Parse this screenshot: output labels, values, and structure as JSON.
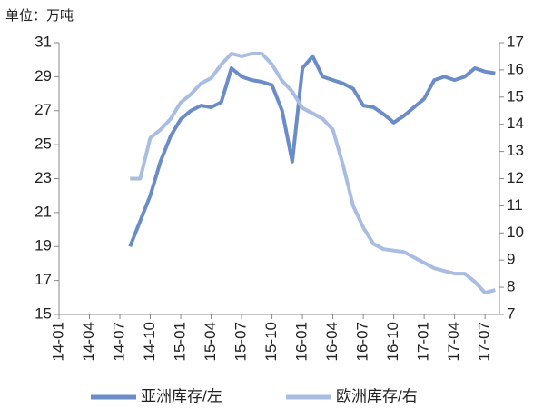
{
  "chart_data": {
    "type": "line",
    "unit_label": "单位：万吨",
    "categories": [
      "14-01",
      null,
      null,
      "14-04",
      null,
      null,
      "14-07",
      null,
      null,
      "14-10",
      null,
      null,
      "15-01",
      null,
      null,
      "15-04",
      null,
      null,
      "15-07",
      null,
      null,
      "15-10",
      null,
      null,
      "16-01",
      null,
      null,
      "16-04",
      null,
      null,
      "16-07",
      null,
      null,
      "16-10",
      null,
      null,
      "17-01",
      null,
      null,
      "17-04",
      null,
      null,
      "17-07",
      null,
      null
    ],
    "series": [
      {
        "name": "亚洲库存/左",
        "color": "#6b8cc7",
        "axis": "y",
        "values": [
          null,
          null,
          null,
          null,
          null,
          null,
          null,
          19,
          20.5,
          22,
          24,
          25.5,
          26.5,
          27,
          27.3,
          27.2,
          27.5,
          29.5,
          29,
          28.8,
          28.7,
          28.5,
          27,
          24,
          29.5,
          30.2,
          29,
          28.8,
          28.6,
          28.3,
          27.3,
          27.2,
          26.8,
          26.3,
          26.7,
          27.2,
          27.7,
          28.8,
          29,
          28.8,
          29,
          29.5,
          29.3,
          29.2,
          null
        ]
      },
      {
        "name": "欧洲库存/右",
        "color": "#a9bde0",
        "axis": "y2",
        "values": [
          null,
          null,
          null,
          null,
          null,
          null,
          null,
          12.0,
          12.0,
          13.5,
          13.8,
          14.2,
          14.8,
          15.1,
          15.5,
          15.7,
          16.2,
          16.6,
          16.5,
          16.6,
          16.6,
          16.2,
          15.6,
          15.2,
          14.6,
          14.4,
          14.2,
          13.8,
          12.5,
          11.0,
          10.2,
          9.6,
          9.4,
          9.35,
          9.3,
          9.1,
          8.9,
          8.7,
          8.6,
          8.5,
          8.5,
          8.2,
          7.8,
          7.9,
          null
        ]
      }
    ],
    "ylim": [
      15,
      31
    ],
    "yticks": [
      15,
      17,
      19,
      21,
      23,
      25,
      27,
      29,
      31
    ],
    "y2lim": [
      7,
      17
    ],
    "y2ticks": [
      7,
      8,
      9,
      10,
      11,
      12,
      13,
      14,
      15,
      16,
      17
    ],
    "legend": "bottom"
  }
}
